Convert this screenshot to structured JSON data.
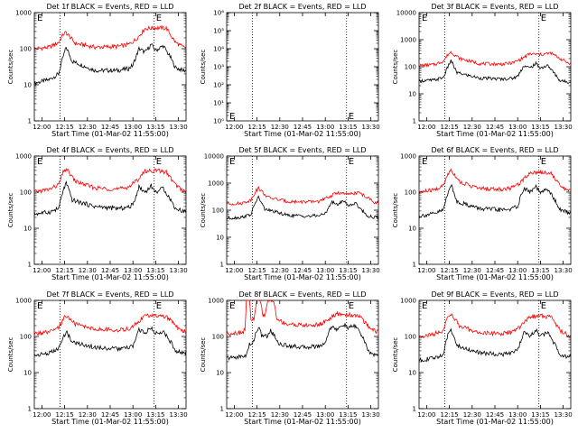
{
  "chart_data": [
    {
      "type": "line",
      "title": "Det 1f BLACK = Events, RED = LLD",
      "xlabel": "Start Time (01-Mar-02 11:55:00)",
      "ylabel": "Counts/sec",
      "y_scale": "log",
      "ylim": [
        1,
        1000
      ],
      "xlim": [
        "11:55",
        "13:35"
      ],
      "x_ticks": [
        "12:00",
        "12:15",
        "12:30",
        "12:45",
        "13:00",
        "13:15",
        "13:30"
      ],
      "y_ticks": [
        "1",
        "10",
        "100",
        "1000"
      ],
      "vlines": [
        "12:12",
        "13:14"
      ],
      "markers": [
        "E",
        "E"
      ],
      "series": [
        {
          "color": "#000000",
          "x": [
            "11:55",
            "12:05",
            "12:11",
            "12:14",
            "12:16",
            "12:20",
            "12:35",
            "12:50",
            "12:57",
            "13:00",
            "13:04",
            "13:08",
            "13:12",
            "13:15",
            "13:20",
            "13:25",
            "13:28",
            "13:33"
          ],
          "values": [
            11,
            14,
            20,
            60,
            110,
            45,
            25,
            25,
            28,
            35,
            100,
            80,
            130,
            90,
            120,
            55,
            30,
            25
          ]
        },
        {
          "color": "#ff0000",
          "x": [
            "11:55",
            "12:05",
            "12:11",
            "12:14",
            "12:16",
            "12:22",
            "12:35",
            "12:50",
            "12:57",
            "13:02",
            "13:08",
            "13:15",
            "13:22",
            "13:28",
            "13:33"
          ],
          "values": [
            100,
            110,
            150,
            250,
            280,
            140,
            110,
            115,
            130,
            180,
            360,
            380,
            370,
            150,
            110
          ]
        }
      ]
    },
    {
      "type": "line",
      "title": "Det 2f BLACK = Events, RED = LLD",
      "xlabel": "Start Time (01-Mar-02 11:55:00)",
      "ylabel": "Counts/sec",
      "y_scale": "log",
      "ylim": [
        1,
        1000000
      ],
      "xlim": [
        "11:55",
        "13:35"
      ],
      "x_ticks": [
        "12:00",
        "12:15",
        "12:30",
        "12:45",
        "13:00",
        "13:15",
        "13:30"
      ],
      "y_ticks": [
        "10⁰",
        "10¹",
        "10²",
        "10³",
        "10⁴",
        "10⁵",
        "10⁶"
      ],
      "vlines": [
        "12:12",
        "13:14"
      ],
      "markers": [
        "E",
        "E"
      ],
      "series": []
    },
    {
      "type": "line",
      "title": "Det 3f BLACK = Events, RED = LLD",
      "xlabel": "Start Time (01-Mar-02 11:55:00)",
      "ylabel": "Counts/sec",
      "y_scale": "log",
      "ylim": [
        1,
        10000
      ],
      "xlim": [
        "11:55",
        "13:35"
      ],
      "x_ticks": [
        "12:00",
        "12:15",
        "12:30",
        "12:45",
        "13:00",
        "13:15",
        "13:30"
      ],
      "y_ticks": [
        "1",
        "10",
        "100",
        "1000",
        "10000"
      ],
      "vlines": [
        "12:12",
        "13:14"
      ],
      "markers": [
        "E",
        "E"
      ],
      "series": [
        {
          "color": "#000000",
          "x": [
            "11:55",
            "12:05",
            "12:11",
            "12:14",
            "12:16",
            "12:20",
            "12:35",
            "12:50",
            "12:57",
            "13:00",
            "13:04",
            "13:08",
            "13:12",
            "13:15",
            "13:20",
            "13:25",
            "13:28",
            "13:33"
          ],
          "values": [
            30,
            32,
            40,
            100,
            170,
            60,
            38,
            35,
            38,
            45,
            110,
            90,
            130,
            90,
            110,
            50,
            30,
            28
          ]
        },
        {
          "color": "#ff0000",
          "x": [
            "11:55",
            "12:05",
            "12:11",
            "12:14",
            "12:16",
            "12:22",
            "12:35",
            "12:50",
            "12:57",
            "13:02",
            "13:08",
            "13:15",
            "13:22",
            "13:28",
            "13:33"
          ],
          "values": [
            110,
            120,
            160,
            280,
            350,
            200,
            130,
            125,
            140,
            190,
            300,
            280,
            320,
            200,
            140
          ]
        }
      ]
    },
    {
      "type": "line",
      "title": "Det 4f BLACK = Events, RED = LLD",
      "xlabel": "Start Time (01-Mar-02 11:55:00)",
      "ylabel": "Counts/sec",
      "y_scale": "log",
      "ylim": [
        1,
        1000
      ],
      "xlim": [
        "11:55",
        "13:35"
      ],
      "x_ticks": [
        "12:00",
        "12:15",
        "12:30",
        "12:45",
        "13:00",
        "13:15",
        "13:30"
      ],
      "y_ticks": [
        "1",
        "10",
        "100",
        "1000"
      ],
      "vlines": [
        "12:12",
        "13:14"
      ],
      "markers": [
        "E",
        "E"
      ],
      "series": [
        {
          "color": "#000000",
          "x": [
            "11:55",
            "12:05",
            "12:11",
            "12:14",
            "12:16",
            "12:20",
            "12:35",
            "12:50",
            "12:57",
            "13:00",
            "13:04",
            "13:08",
            "13:12",
            "13:15",
            "13:20",
            "13:25",
            "13:28",
            "13:33"
          ],
          "values": [
            25,
            28,
            35,
            110,
            180,
            60,
            40,
            35,
            38,
            45,
            140,
            100,
            150,
            100,
            130,
            60,
            35,
            30
          ]
        },
        {
          "color": "#ff0000",
          "x": [
            "11:55",
            "12:05",
            "12:11",
            "12:14",
            "12:16",
            "12:22",
            "12:35",
            "12:50",
            "12:57",
            "13:02",
            "13:08",
            "13:15",
            "13:22",
            "13:28",
            "13:33"
          ],
          "values": [
            100,
            120,
            160,
            350,
            450,
            200,
            130,
            120,
            140,
            200,
            380,
            400,
            360,
            160,
            110
          ]
        }
      ]
    },
    {
      "type": "line",
      "title": "Det 5f BLACK = Events, RED = LLD",
      "xlabel": "Start Time (01-Mar-02 11:55:00)",
      "ylabel": "Counts/sec",
      "y_scale": "log",
      "ylim": [
        1,
        10000
      ],
      "xlim": [
        "11:55",
        "13:35"
      ],
      "x_ticks": [
        "12:00",
        "12:15",
        "12:30",
        "12:45",
        "13:00",
        "13:15",
        "13:30"
      ],
      "y_ticks": [
        "1",
        "10",
        "100",
        "1000",
        "10000"
      ],
      "vlines": [
        "12:12",
        "13:14"
      ],
      "markers": [
        "E",
        "E"
      ],
      "series": [
        {
          "color": "#000000",
          "x": [
            "11:55",
            "12:05",
            "12:11",
            "12:14",
            "12:16",
            "12:20",
            "12:35",
            "12:50",
            "12:57",
            "13:00",
            "13:04",
            "13:08",
            "13:12",
            "13:15",
            "13:20",
            "13:25",
            "13:28",
            "13:33"
          ],
          "values": [
            50,
            55,
            70,
            200,
            300,
            110,
            65,
            60,
            65,
            75,
            200,
            160,
            230,
            150,
            180,
            90,
            60,
            55
          ]
        },
        {
          "color": "#ff0000",
          "x": [
            "11:55",
            "12:05",
            "12:11",
            "12:14",
            "12:16",
            "12:22",
            "12:35",
            "12:50",
            "12:57",
            "13:02",
            "13:08",
            "13:15",
            "13:22",
            "13:28",
            "13:33"
          ],
          "values": [
            170,
            180,
            240,
            500,
            650,
            300,
            210,
            200,
            220,
            300,
            450,
            380,
            450,
            280,
            190
          ]
        }
      ]
    },
    {
      "type": "line",
      "title": "Det 6f BLACK = Events, RED = LLD",
      "xlabel": "Start Time (01-Mar-02 11:55:00)",
      "ylabel": "Counts/sec",
      "y_scale": "log",
      "ylim": [
        1,
        1000
      ],
      "xlim": [
        "11:55",
        "13:35"
      ],
      "x_ticks": [
        "12:00",
        "12:15",
        "12:30",
        "12:45",
        "13:00",
        "13:15",
        "13:30"
      ],
      "y_ticks": [
        "1",
        "10",
        "100",
        "1000"
      ],
      "vlines": [
        "12:12",
        "13:14"
      ],
      "markers": [
        "E",
        "E"
      ],
      "series": [
        {
          "color": "#000000",
          "x": [
            "11:55",
            "12:05",
            "12:11",
            "12:14",
            "12:16",
            "12:20",
            "12:35",
            "12:50",
            "12:57",
            "13:00",
            "13:04",
            "13:08",
            "13:12",
            "13:15",
            "13:20",
            "13:25",
            "13:28",
            "13:33"
          ],
          "values": [
            22,
            25,
            32,
            100,
            160,
            55,
            35,
            32,
            35,
            42,
            130,
            100,
            140,
            95,
            120,
            55,
            32,
            28
          ]
        },
        {
          "color": "#ff0000",
          "x": [
            "11:55",
            "12:05",
            "12:11",
            "12:14",
            "12:16",
            "12:22",
            "12:35",
            "12:50",
            "12:57",
            "13:02",
            "13:08",
            "13:15",
            "13:22",
            "13:28",
            "13:33"
          ],
          "values": [
            100,
            115,
            150,
            320,
            420,
            190,
            125,
            120,
            135,
            190,
            350,
            360,
            340,
            150,
            110
          ]
        }
      ]
    },
    {
      "type": "line",
      "title": "Det 7f BLACK = Events, RED = LLD",
      "xlabel": "Start Time (01-Mar-02 11:55:00)",
      "ylabel": "Counts/sec",
      "y_scale": "log",
      "ylim": [
        1,
        1000
      ],
      "xlim": [
        "11:55",
        "13:35"
      ],
      "x_ticks": [
        "12:00",
        "12:15",
        "12:30",
        "12:45",
        "13:00",
        "13:15",
        "13:30"
      ],
      "y_ticks": [
        "1",
        "10",
        "100",
        "1000"
      ],
      "vlines": [
        "12:12",
        "13:14"
      ],
      "markers": [
        "E",
        "E"
      ],
      "series": [
        {
          "color": "#000000",
          "x": [
            "11:55",
            "12:05",
            "12:11",
            "12:14",
            "12:16",
            "12:20",
            "12:35",
            "12:50",
            "12:57",
            "13:00",
            "13:04",
            "13:08",
            "13:12",
            "13:15",
            "13:20",
            "13:25",
            "13:28",
            "13:33"
          ],
          "values": [
            30,
            35,
            45,
            90,
            140,
            70,
            50,
            45,
            48,
            55,
            150,
            130,
            170,
            120,
            140,
            70,
            40,
            35
          ]
        },
        {
          "color": "#ff0000",
          "x": [
            "11:55",
            "12:05",
            "12:11",
            "12:14",
            "12:16",
            "12:22",
            "12:35",
            "12:50",
            "12:57",
            "13:02",
            "13:08",
            "13:15",
            "13:22",
            "13:28",
            "13:33"
          ],
          "values": [
            120,
            130,
            170,
            300,
            380,
            220,
            160,
            150,
            160,
            220,
            380,
            370,
            360,
            200,
            140
          ]
        }
      ]
    },
    {
      "type": "line",
      "title": "Det 8f BLACK = Events, RED = LLD",
      "xlabel": "Start Time (01-Mar-02 11:55:00)",
      "ylabel": "Counts/sec",
      "y_scale": "log",
      "ylim": [
        1,
        1000
      ],
      "xlim": [
        "11:55",
        "13:35"
      ],
      "x_ticks": [
        "12:00",
        "12:15",
        "12:30",
        "12:45",
        "13:00",
        "13:15",
        "13:30"
      ],
      "y_ticks": [
        "1",
        "10",
        "100",
        "1000"
      ],
      "vlines": [
        "12:12",
        "13:14"
      ],
      "markers": [
        "E",
        "E"
      ],
      "series": [
        {
          "color": "#000000",
          "x": [
            "11:55",
            "12:05",
            "12:08",
            "12:10",
            "12:12",
            "12:14",
            "12:16",
            "12:18",
            "12:22",
            "12:24",
            "12:30",
            "12:45",
            "12:57",
            "13:00",
            "13:04",
            "13:08",
            "13:12",
            "13:15",
            "13:20",
            "13:25",
            "13:28",
            "13:33"
          ],
          "values": [
            25,
            28,
            30,
            60,
            60,
            120,
            180,
            110,
            100,
            150,
            60,
            50,
            55,
            70,
            200,
            150,
            220,
            170,
            200,
            90,
            40,
            30
          ]
        },
        {
          "color": "#ff0000",
          "x": [
            "11:55",
            "12:05",
            "12:07",
            "12:08",
            "12:10",
            "12:11",
            "12:13",
            "12:15",
            "12:17",
            "12:19",
            "12:20",
            "12:22",
            "12:24",
            "12:26",
            "12:28",
            "12:35",
            "12:50",
            "12:57",
            "13:02",
            "13:08",
            "13:15",
            "13:22",
            "13:28",
            "13:33"
          ],
          "values": [
            120,
            130,
            150,
            1000,
            1000,
            300,
            300,
            1000,
            1000,
            400,
            350,
            1000,
            1000,
            1000,
            300,
            220,
            200,
            220,
            300,
            420,
            400,
            380,
            200,
            140
          ]
        }
      ]
    },
    {
      "type": "line",
      "title": "Det 9f BLACK = Events, RED = LLD",
      "xlabel": "Start Time (01-Mar-02 11:55:00)",
      "ylabel": "Counts/sec",
      "y_scale": "log",
      "ylim": [
        1,
        1000
      ],
      "xlim": [
        "11:55",
        "13:35"
      ],
      "x_ticks": [
        "12:00",
        "12:15",
        "12:30",
        "12:45",
        "13:00",
        "13:15",
        "13:30"
      ],
      "y_ticks": [
        "1",
        "10",
        "100",
        "1000"
      ],
      "vlines": [
        "12:12",
        "13:14"
      ],
      "markers": [
        "E",
        "E"
      ],
      "series": [
        {
          "color": "#000000",
          "x": [
            "11:55",
            "12:05",
            "12:11",
            "12:14",
            "12:16",
            "12:20",
            "12:35",
            "12:50",
            "12:57",
            "13:00",
            "13:04",
            "13:08",
            "13:12",
            "13:15",
            "13:20",
            "13:25",
            "13:28",
            "13:33"
          ],
          "values": [
            22,
            25,
            32,
            110,
            170,
            55,
            35,
            32,
            35,
            42,
            130,
            100,
            150,
            100,
            130,
            55,
            32,
            28
          ]
        },
        {
          "color": "#ff0000",
          "x": [
            "11:55",
            "12:05",
            "12:11",
            "12:14",
            "12:16",
            "12:22",
            "12:35",
            "12:50",
            "12:57",
            "13:02",
            "13:08",
            "13:15",
            "13:22",
            "13:28",
            "13:33"
          ],
          "values": [
            100,
            115,
            150,
            330,
            430,
            190,
            125,
            120,
            135,
            190,
            360,
            370,
            350,
            150,
            110
          ]
        }
      ]
    }
  ]
}
